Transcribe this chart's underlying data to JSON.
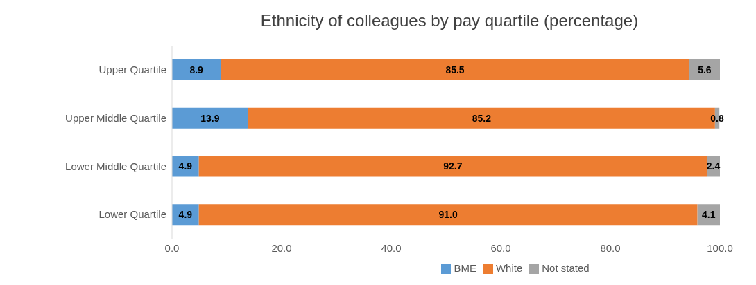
{
  "chart_data": {
    "type": "bar",
    "orientation": "horizontal",
    "stacked": true,
    "title": "Ethnicity of colleagues by pay quartile (percentage)",
    "categories": [
      "Upper Quartile",
      "Upper Middle Quartile",
      "Lower Middle Quartile",
      "Lower Quartile"
    ],
    "series": [
      {
        "name": "BME",
        "color": "#5b9bd5",
        "values": [
          8.9,
          13.9,
          4.9,
          4.9
        ],
        "value_labels": [
          "8.9",
          "13.9",
          "4.9",
          "4.9"
        ]
      },
      {
        "name": "White",
        "color": "#ed7d31",
        "values": [
          85.5,
          85.2,
          92.7,
          91.0
        ],
        "value_labels": [
          "85.5",
          "85.2",
          "92.7",
          "91.0"
        ]
      },
      {
        "name": "Not stated",
        "color": "#a5a5a5",
        "values": [
          5.6,
          0.8,
          2.4,
          4.1
        ],
        "value_labels": [
          "5.6",
          "0.8",
          "2.4",
          "4.1"
        ]
      }
    ],
    "xlim": [
      0,
      100
    ],
    "xticks": [
      {
        "value": 0,
        "label": "0.0"
      },
      {
        "value": 20,
        "label": "20.0"
      },
      {
        "value": 40,
        "label": "40.0"
      },
      {
        "value": 60,
        "label": "60.0"
      },
      {
        "value": 80,
        "label": "80.0"
      },
      {
        "value": 100,
        "label": "100.0"
      }
    ],
    "grid": false,
    "legend": "bottom"
  }
}
